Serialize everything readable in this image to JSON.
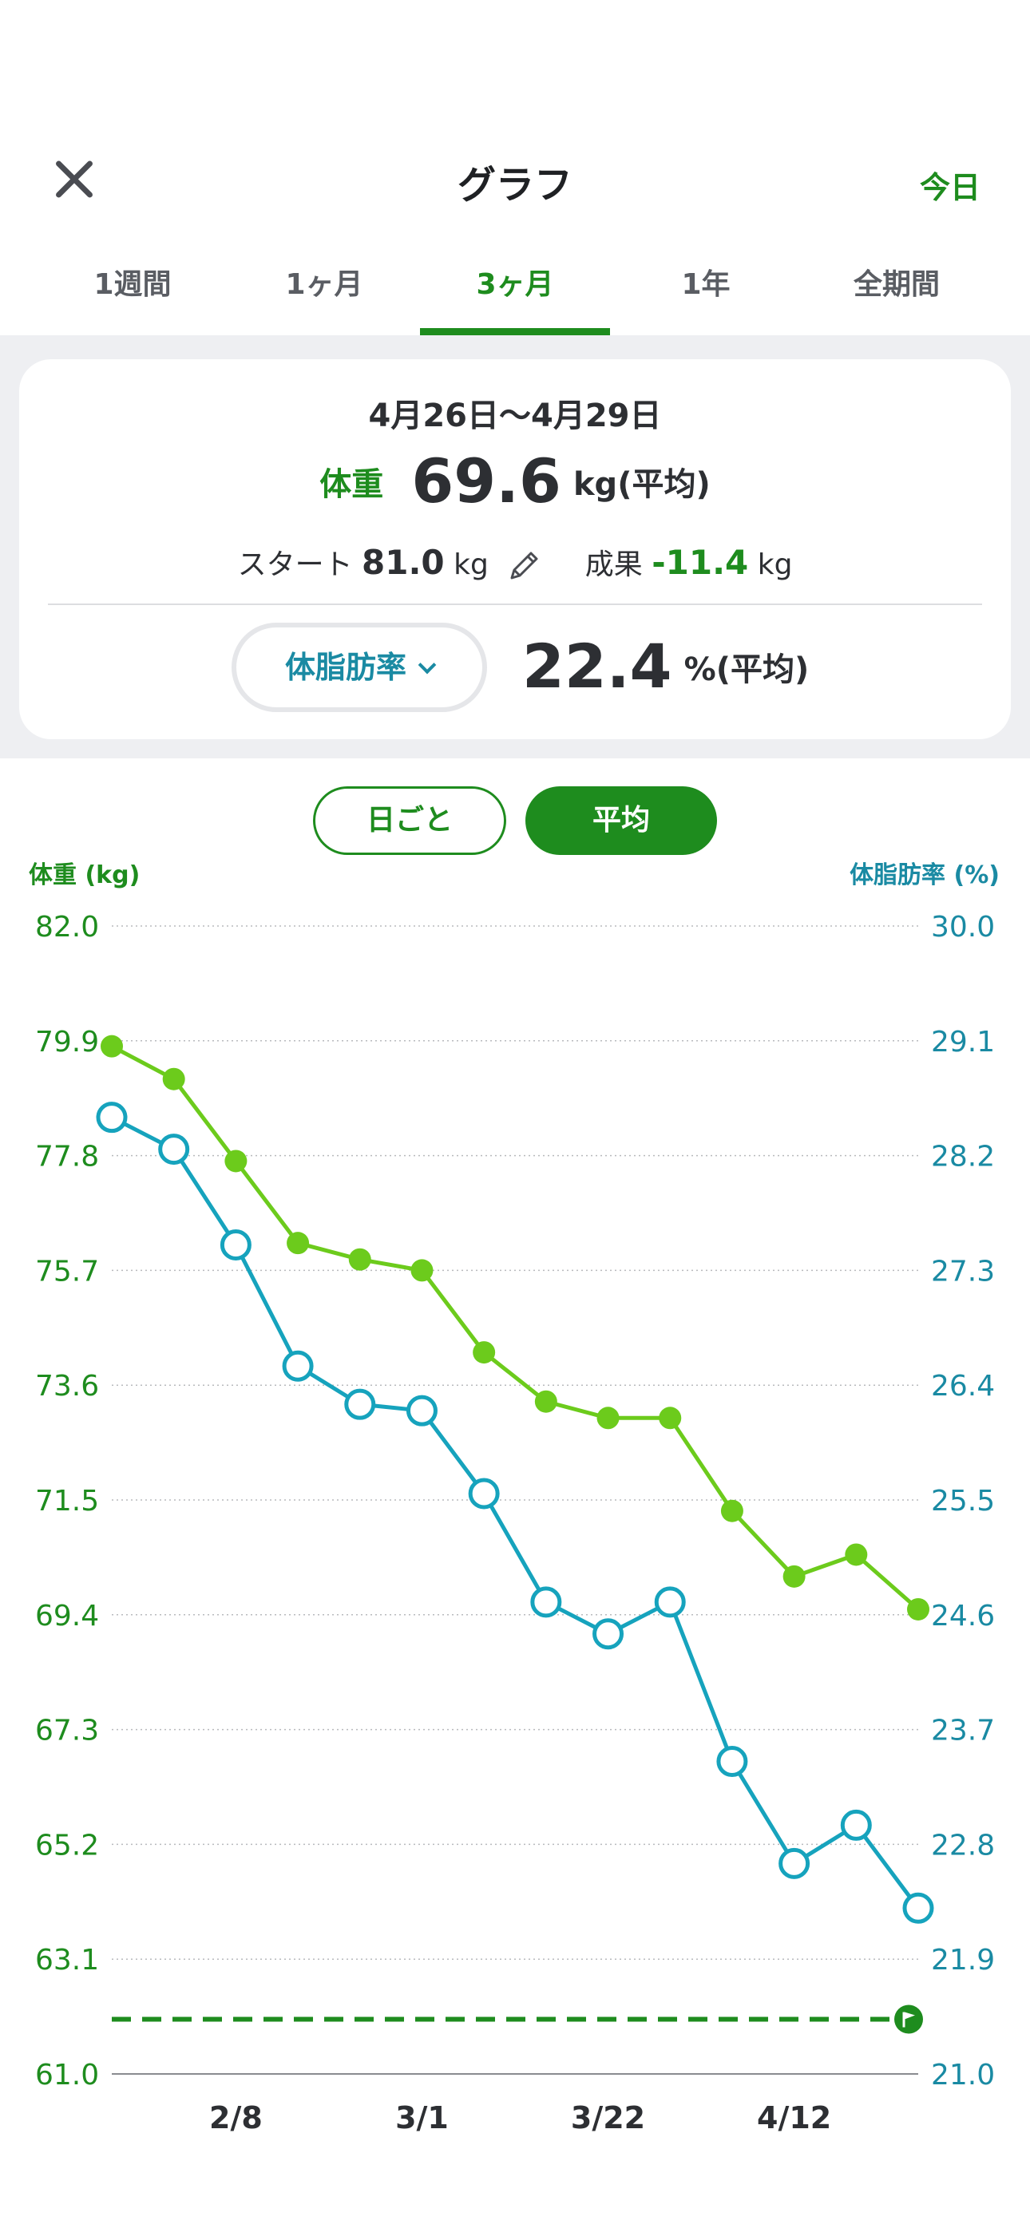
{
  "header": {
    "title": "グラフ",
    "today_label": "今日"
  },
  "tabs": [
    {
      "label": "1週間",
      "active": false
    },
    {
      "label": "1ヶ月",
      "active": false
    },
    {
      "label": "3ヶ月",
      "active": true
    },
    {
      "label": "1年",
      "active": false
    },
    {
      "label": "全期間",
      "active": false
    }
  ],
  "summary": {
    "range": "4月26日〜4月29日",
    "weight_label": "体重",
    "weight_value": "69.6",
    "weight_unit": "kg(平均)",
    "start_label": "スタート",
    "start_value": "81.0",
    "start_unit": "kg",
    "result_label": "成果",
    "result_value": "-11.4",
    "result_unit": "kg",
    "metric_selector": "体脂肪率",
    "fat_value": "22.4",
    "fat_unit": "%(平均)"
  },
  "toggle": {
    "daily_label": "日ごと",
    "average_label": "平均",
    "selected": "平均"
  },
  "icons": {
    "close": "close-icon",
    "pencil": "pencil-icon",
    "chevron": "chevron-down-icon",
    "goal": "goal-flag-icon"
  },
  "colors": {
    "accent_green": "#1e8c1e",
    "weight_series": "#6ccb1c",
    "fat_series": "#16a3bd",
    "fat_text": "#1a8aa3"
  },
  "chart_data": {
    "type": "line",
    "left_axis_title": "体重 (kg)",
    "right_axis_title": "体脂肪率 (%)",
    "left_ticks": [
      "82.0",
      "79.9",
      "77.8",
      "75.7",
      "73.6",
      "71.5",
      "69.4",
      "67.3",
      "65.2",
      "63.1",
      "61.0"
    ],
    "right_ticks": [
      "30.0",
      "29.1",
      "28.2",
      "27.3",
      "26.4",
      "25.5",
      "24.6",
      "23.7",
      "22.8",
      "21.9",
      "21.0"
    ],
    "x_tick_labels": [
      {
        "label": "2/8",
        "index": 2
      },
      {
        "label": "3/1",
        "index": 5
      },
      {
        "label": "3/22",
        "index": 8
      },
      {
        "label": "4/12",
        "index": 11
      }
    ],
    "ylim_left": [
      61.0,
      82.0
    ],
    "ylim_right": [
      21.0,
      30.0
    ],
    "point_count": 14,
    "goal_weight": 62.0,
    "grid": true,
    "series": [
      {
        "name": "体重",
        "axis": "left",
        "marker": "filled",
        "values": [
          79.8,
          79.2,
          77.7,
          76.2,
          75.9,
          75.7,
          74.2,
          73.3,
          73.0,
          73.0,
          71.3,
          70.1,
          70.5,
          69.5
        ]
      },
      {
        "name": "体脂肪率",
        "axis": "right",
        "marker": "hollow",
        "values": [
          28.5,
          28.25,
          27.5,
          26.55,
          26.25,
          26.2,
          25.55,
          24.7,
          24.45,
          24.7,
          23.45,
          22.65,
          22.95,
          22.3
        ]
      }
    ]
  }
}
